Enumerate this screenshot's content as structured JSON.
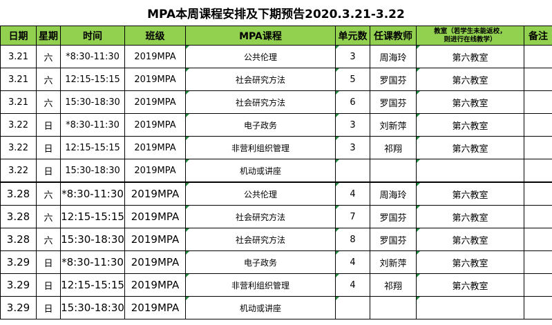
{
  "title": "MPA本周课程安排及下期预告2020.3.21-3.22",
  "headers": {
    "date": "日期",
    "weekday": "星期",
    "time": "时间",
    "class": "班级",
    "course": "MPA课程",
    "unit": "单元数",
    "teacher": "任课教师",
    "room_line1": "教室（若学生未能返校，",
    "room_line2": "则进行在线教学）",
    "note": "备注"
  },
  "rows": [
    {
      "date": "3.21",
      "weekday": "六",
      "time": "*8:30-11:30",
      "class": "2019MPA",
      "course": "公共伦理",
      "unit": "3",
      "teacher": "周海玲",
      "room": "第六教室",
      "note": ""
    },
    {
      "date": "3.21",
      "weekday": "六",
      "time": "12:15-15:15",
      "class": "2019MPA",
      "course": "社会研究方法",
      "unit": "5",
      "teacher": "罗国芬",
      "room": "第六教室",
      "note": ""
    },
    {
      "date": "3.21",
      "weekday": "六",
      "time": "15:30-18:30",
      "class": "2019MPA",
      "course": "社会研究方法",
      "unit": "6",
      "teacher": "罗国芬",
      "room": "第六教室",
      "note": ""
    },
    {
      "date": "3.22",
      "weekday": "日",
      "time": "*8:30-11:30",
      "class": "2019MPA",
      "course": "电子政务",
      "unit": "3",
      "teacher": "刘新萍",
      "room": "第六教室",
      "note": ""
    },
    {
      "date": "3.22",
      "weekday": "日",
      "time": "12:15-15:15",
      "class": "2019MPA",
      "course": "非营利组织管理",
      "unit": "3",
      "teacher": "祁翔",
      "room": "第六教室",
      "note": ""
    },
    {
      "date": "3.22",
      "weekday": "日",
      "time": "15:30-18:30",
      "class": "2019MPA",
      "course": "机动或讲座",
      "unit": "",
      "teacher": "",
      "room": "",
      "note": ""
    },
    {
      "date": "3.28",
      "weekday": "六",
      "time": "*8:30-11:30",
      "class": "2019MPA",
      "course": "公共伦理",
      "unit": "4",
      "teacher": "周海玲",
      "room": "第六教室",
      "note": ""
    },
    {
      "date": "3.28",
      "weekday": "六",
      "time": "12:15-15:15",
      "class": "2019MPA",
      "course": "社会研究方法",
      "unit": "7",
      "teacher": "罗国芬",
      "room": "第六教室",
      "note": ""
    },
    {
      "date": "3.28",
      "weekday": "六",
      "time": "15:30-18:30",
      "class": "2019MPA",
      "course": "社会研究方法",
      "unit": "8",
      "teacher": "罗国芬",
      "room": "第六教室",
      "note": ""
    },
    {
      "date": "3.29",
      "weekday": "日",
      "time": "*8:30-11:30",
      "class": "2019MPA",
      "course": "电子政务",
      "unit": "4",
      "teacher": "刘新萍",
      "room": "第六教室",
      "note": ""
    },
    {
      "date": "3.29",
      "weekday": "日",
      "time": "12:15-15:15",
      "class": "2019MPA",
      "course": "非营利组织管理",
      "unit": "4",
      "teacher": "祁翔",
      "room": "第六教室",
      "note": ""
    },
    {
      "date": "3.29",
      "weekday": "日",
      "time": "15:30-18:30",
      "class": "2019MPA",
      "course": "机动或讲座",
      "unit": "",
      "teacher": "",
      "room": "",
      "note": ""
    }
  ]
}
